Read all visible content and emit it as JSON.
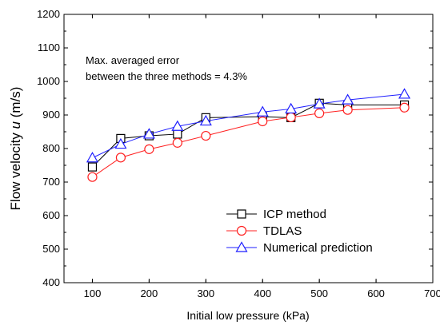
{
  "chart_data": {
    "type": "line",
    "xlabel": "Initial low pressure (kPa)",
    "ylabel_prefix": "Flow velocity ",
    "ylabel_symbol": "u",
    "ylabel_suffix": " (m/s)",
    "xlim": [
      50,
      700
    ],
    "ylim": [
      400,
      1200
    ],
    "xticks": [
      100,
      200,
      300,
      400,
      500,
      600,
      700
    ],
    "yticks": [
      400,
      500,
      600,
      700,
      800,
      900,
      1000,
      1100,
      1200
    ],
    "annotation_line1": "Max. averaged error",
    "annotation_line2": "between the three methods = 4.3%",
    "legend_position": "lower-right",
    "series": [
      {
        "name": "ICP method",
        "color": "#000000",
        "marker": "square",
        "x": [
          100,
          150,
          200,
          250,
          300,
          400,
          450,
          500,
          550,
          650
        ],
        "y": [
          745,
          830,
          838,
          843,
          892,
          895,
          892,
          935,
          930,
          930
        ]
      },
      {
        "name": "TDLAS",
        "color": "#ff2020",
        "marker": "circle",
        "x": [
          100,
          150,
          200,
          250,
          300,
          400,
          450,
          500,
          550,
          650
        ],
        "y": [
          715,
          773,
          798,
          817,
          838,
          881,
          893,
          905,
          915,
          922
        ]
      },
      {
        "name": "Numerical prediction",
        "color": "#1f1fff",
        "marker": "triangle",
        "x": [
          100,
          150,
          200,
          250,
          300,
          400,
          450,
          500,
          550,
          650
        ],
        "y": [
          772,
          813,
          843,
          866,
          882,
          909,
          918,
          933,
          945,
          962
        ]
      }
    ]
  }
}
